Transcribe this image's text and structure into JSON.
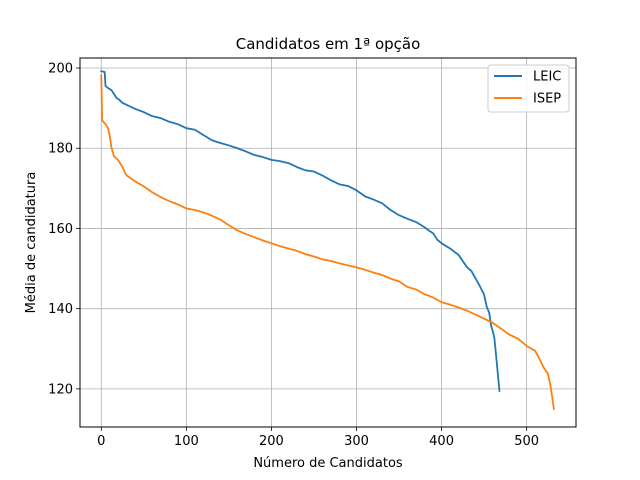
{
  "chart_data": {
    "type": "line",
    "title": "Candidatos em 1ª opção",
    "xlabel": "Número de Candidatos",
    "ylabel": "Média de candidatura",
    "xlim": [
      -25,
      558
    ],
    "ylim": [
      110.5,
      202.5
    ],
    "xticks": [
      0,
      100,
      200,
      300,
      400,
      500
    ],
    "yticks": [
      120,
      140,
      160,
      180,
      200
    ],
    "grid": true,
    "legend_position": "top-right",
    "series": [
      {
        "name": "LEIC",
        "color": "#1f77b4",
        "x": [
          0,
          4,
          5,
          8,
          12,
          15,
          18,
          20,
          25,
          30,
          40,
          50,
          60,
          70,
          80,
          90,
          100,
          110,
          120,
          130,
          140,
          150,
          160,
          170,
          180,
          190,
          200,
          210,
          220,
          230,
          240,
          250,
          260,
          270,
          280,
          290,
          300,
          310,
          320,
          330,
          340,
          350,
          360,
          370,
          380,
          385,
          390,
          395,
          400,
          410,
          420,
          430,
          435,
          440,
          445,
          450,
          453,
          456,
          458,
          460,
          462,
          464,
          466,
          468
        ],
        "y": [
          199.2,
          199,
          195.5,
          195,
          194.5,
          193.5,
          192.5,
          192.3,
          191.3,
          190.8,
          189.8,
          189,
          188,
          187.5,
          186.6,
          186,
          185,
          184.6,
          183.3,
          182,
          181.3,
          180.7,
          180,
          179.2,
          178.3,
          177.8,
          177.1,
          176.8,
          176.3,
          175.3,
          174.5,
          174.2,
          173.2,
          172,
          171,
          170.6,
          169.5,
          168,
          167.2,
          166.3,
          164.6,
          163.3,
          162.4,
          161.6,
          160.3,
          159.5,
          158.8,
          157.2,
          156.3,
          155,
          153.4,
          150.3,
          149.4,
          147.5,
          145.6,
          143.5,
          140.5,
          139,
          136,
          134.5,
          132.8,
          128.5,
          124,
          119.5
        ]
      },
      {
        "name": "ISEP",
        "color": "#ff7f0e",
        "x": [
          0,
          1,
          2,
          5,
          8,
          10,
          12,
          15,
          20,
          25,
          28,
          30,
          40,
          50,
          60,
          70,
          80,
          90,
          100,
          110,
          120,
          130,
          140,
          150,
          160,
          170,
          180,
          190,
          200,
          210,
          220,
          230,
          240,
          250,
          260,
          270,
          280,
          290,
          300,
          310,
          320,
          330,
          340,
          350,
          360,
          370,
          380,
          390,
          400,
          410,
          420,
          430,
          440,
          450,
          460,
          470,
          480,
          490,
          500,
          510,
          515,
          520,
          525,
          528,
          530,
          532
        ],
        "y": [
          198.2,
          187,
          186.7,
          186,
          185,
          183,
          180.2,
          178,
          177,
          175.3,
          173.8,
          173.2,
          171.7,
          170.5,
          169,
          167.8,
          166.8,
          166,
          165,
          164.6,
          164,
          163.2,
          162.2,
          160.8,
          159.5,
          158.6,
          157.8,
          157,
          156.3,
          155.6,
          155,
          154.4,
          153.6,
          153,
          152.3,
          151.9,
          151.3,
          150.8,
          150.3,
          149.7,
          149,
          148.4,
          147.5,
          146.8,
          145.4,
          144.8,
          143.6,
          142.8,
          141.6,
          141,
          140.3,
          139.5,
          138.5,
          137.5,
          136.5,
          135,
          133.5,
          132.5,
          130.7,
          129.5,
          127.5,
          125.3,
          123.8,
          120.8,
          118,
          115
        ]
      }
    ]
  }
}
